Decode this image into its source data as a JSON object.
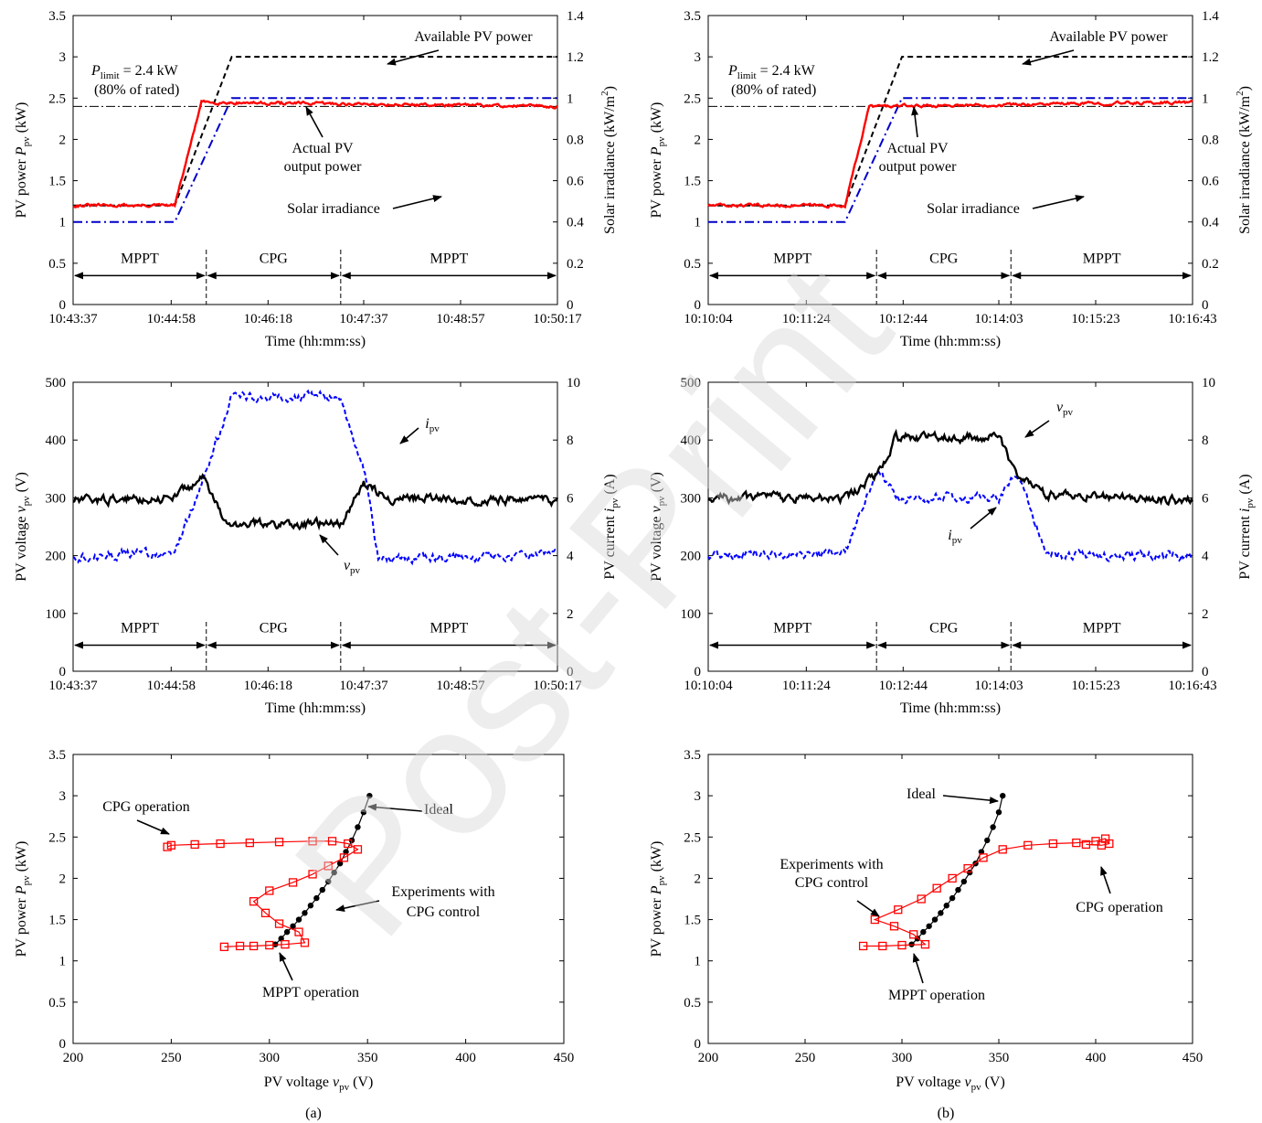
{
  "captions": [
    "(a)",
    "(b)"
  ],
  "watermark": "Post-Print",
  "chart_data": [
    {
      "id": "a-power",
      "type": "line",
      "xlabel": "Time (hh:mm:ss)",
      "ylabel": "PV power",
      "ylabel_var": "P",
      "ylabel_sub": "pv",
      "ylabel_unit": " (kW)",
      "y2label": "Solar irradiance (kW/m",
      "y2label_sup": "2",
      "y2label_end": ")",
      "xlim": [
        0,
        400
      ],
      "xticks": [
        0,
        81,
        161,
        240,
        320,
        400
      ],
      "xticklabels": [
        "10:43:37",
        "10:44:58",
        "10:46:18",
        "10:47:37",
        "10:48:57",
        "10:50:17"
      ],
      "ylim": [
        0,
        3.5
      ],
      "yticks": [
        0,
        0.5,
        1,
        1.5,
        2,
        2.5,
        3,
        3.5
      ],
      "yticklabels": [
        "0",
        "0.5",
        "1",
        "1.5",
        "2",
        "2.5",
        "3",
        "3.5"
      ],
      "y2lim": [
        0,
        1.4
      ],
      "y2ticks": [
        0,
        0.2,
        0.4,
        0.6,
        0.8,
        1,
        1.2,
        1.4
      ],
      "y2ticklabels": [
        "0",
        "0.2",
        "0.4",
        "0.6",
        "0.8",
        "1",
        "1.2",
        "1.4"
      ],
      "grid": false,
      "limit_line": 2.4,
      "series": [
        {
          "name": "Available PV power",
          "color": "#000000",
          "dash": "6,4",
          "x": [
            0,
            84,
            131,
            400
          ],
          "y": [
            1.2,
            1.2,
            3.0,
            3.0
          ]
        },
        {
          "name": "Solar irradiance",
          "axis": "right",
          "color": "#0000cc",
          "dash": "10,4,2,4",
          "x": [
            0,
            84,
            131,
            400
          ],
          "y": [
            0.4,
            0.4,
            1.0,
            1.0
          ]
        },
        {
          "name": "Actual PV output power",
          "color": "#ff0000",
          "dash": "",
          "x": [
            0,
            84,
            106,
            400
          ],
          "y": [
            1.2,
            1.2,
            2.45,
            2.4
          ]
        }
      ],
      "phases": [
        {
          "label": "MPPT",
          "from": 0,
          "to": 110
        },
        {
          "label": "CPG",
          "from": 110,
          "to": 221
        },
        {
          "label": "MPPT",
          "from": 221,
          "to": 400
        }
      ],
      "phase_y": 0.35,
      "annotations": [
        {
          "text": "Available PV power"
        },
        {
          "text": "Actual PV"
        },
        {
          "text": "output power"
        },
        {
          "text": "Solar irradiance"
        },
        {
          "text": "= 2.4 kW",
          "var": "P",
          "sub": "limit"
        },
        {
          "text": "(80% of rated)"
        }
      ]
    },
    {
      "id": "b-power",
      "type": "line",
      "xlabel": "Time (hh:mm:ss)",
      "ylabel": "PV power",
      "ylabel_var": "P",
      "ylabel_sub": "pv",
      "ylabel_unit": " (kW)",
      "y2label": "Solar irradiance (kW/m",
      "y2label_sup": "2",
      "y2label_end": ")",
      "xlim": [
        0,
        400
      ],
      "xticks": [
        0,
        81,
        161,
        240,
        320,
        400
      ],
      "xticklabels": [
        "10:10:04",
        "10:11:24",
        "10:12:44",
        "10:14:03",
        "10:15:23",
        "10:16:43"
      ],
      "ylim": [
        0,
        3.5
      ],
      "yticks": [
        0,
        0.5,
        1,
        1.5,
        2,
        2.5,
        3,
        3.5
      ],
      "yticklabels": [
        "0",
        "0.5",
        "1",
        "1.5",
        "2",
        "2.5",
        "3",
        "3.5"
      ],
      "y2lim": [
        0,
        1.4
      ],
      "y2ticks": [
        0,
        0.2,
        0.4,
        0.6,
        0.8,
        1,
        1.2,
        1.4
      ],
      "y2ticklabels": [
        "0",
        "0.2",
        "0.4",
        "0.6",
        "0.8",
        "1",
        "1.2",
        "1.4"
      ],
      "grid": false,
      "limit_line": 2.4,
      "series": [
        {
          "name": "Available PV power",
          "color": "#000000",
          "dash": "6,4",
          "x": [
            0,
            113,
            160,
            400
          ],
          "y": [
            1.2,
            1.2,
            3.0,
            3.0
          ]
        },
        {
          "name": "Solar irradiance",
          "axis": "right",
          "color": "#0000cc",
          "dash": "10,4,2,4",
          "x": [
            0,
            113,
            160,
            400
          ],
          "y": [
            0.4,
            0.4,
            1.0,
            1.0
          ]
        },
        {
          "name": "Actual PV output power",
          "color": "#ff0000",
          "dash": "",
          "x": [
            0,
            113,
            133,
            400
          ],
          "y": [
            1.2,
            1.2,
            2.4,
            2.45
          ]
        }
      ],
      "phases": [
        {
          "label": "MPPT",
          "from": 0,
          "to": 139
        },
        {
          "label": "CPG",
          "from": 139,
          "to": 250
        },
        {
          "label": "MPPT",
          "from": 250,
          "to": 400
        }
      ],
      "phase_y": 0.35,
      "annotations": [
        {
          "text": "Available PV power"
        },
        {
          "text": "Actual PV"
        },
        {
          "text": "output power"
        },
        {
          "text": "Solar irradiance"
        },
        {
          "text": "= 2.4 kW",
          "var": "P",
          "sub": "limit"
        },
        {
          "text": "(80% of rated)"
        }
      ]
    },
    {
      "id": "a-vi",
      "type": "line",
      "xlabel": "Time (hh:mm:ss)",
      "ylabel": "PV voltage",
      "ylabel_var": "v",
      "ylabel_sub": "pv",
      "ylabel_unit": " (V)",
      "y2label": "PV current",
      "y2label_var": "i",
      "y2label_sub": "pv",
      "y2label_end": " (A)",
      "xlim": [
        0,
        400
      ],
      "xticks": [
        0,
        81,
        161,
        240,
        320,
        400
      ],
      "xticklabels": [
        "10:43:37",
        "10:44:58",
        "10:46:18",
        "10:47:37",
        "10:48:57",
        "10:50:17"
      ],
      "ylim": [
        0,
        500
      ],
      "yticks": [
        0,
        100,
        200,
        300,
        400,
        500
      ],
      "yticklabels": [
        "0",
        "100",
        "200",
        "300",
        "400",
        "500"
      ],
      "y2lim": [
        0,
        10
      ],
      "y2ticks": [
        0,
        2,
        4,
        6,
        8,
        10
      ],
      "y2ticklabels": [
        "0",
        "2",
        "4",
        "6",
        "8",
        "10"
      ],
      "grid": false,
      "series": [
        {
          "name": "i_pv",
          "axis": "right",
          "color": "#0000ff",
          "dash": "5,3",
          "x": [
            0,
            84,
            109,
            131,
            221,
            243,
            252,
            400
          ],
          "y": [
            4.0,
            4.1,
            6.8,
            9.5,
            9.5,
            6.5,
            3.9,
            4.0
          ]
        },
        {
          "name": "v_pv",
          "color": "#000000",
          "dash": "",
          "x": [
            0,
            80,
            109,
            125,
            221,
            240,
            260,
            400
          ],
          "y": [
            295,
            300,
            335,
            255,
            255,
            325,
            300,
            295
          ]
        }
      ],
      "phases": [
        {
          "label": "MPPT",
          "from": 0,
          "to": 110
        },
        {
          "label": "CPG",
          "from": 110,
          "to": 221
        },
        {
          "label": "MPPT",
          "from": 221,
          "to": 400
        }
      ],
      "phase_y": 45,
      "annotations": [
        {
          "text": "",
          "var": "i",
          "sub": "pv"
        },
        {
          "text": "",
          "var": "v",
          "sub": "pv"
        }
      ]
    },
    {
      "id": "b-vi",
      "type": "line",
      "xlabel": "Time (hh:mm:ss)",
      "ylabel": "PV voltage",
      "ylabel_var": "v",
      "ylabel_sub": "pv",
      "ylabel_unit": " (V)",
      "y2label": "PV current",
      "y2label_var": "i",
      "y2label_sub": "pv",
      "y2label_end": " (A)",
      "xlim": [
        0,
        400
      ],
      "xticks": [
        0,
        81,
        161,
        240,
        320,
        400
      ],
      "xticklabels": [
        "10:10:04",
        "10:11:24",
        "10:12:44",
        "10:14:03",
        "10:15:23",
        "10:16:43"
      ],
      "ylim": [
        0,
        500
      ],
      "yticks": [
        0,
        100,
        200,
        300,
        400,
        500
      ],
      "yticklabels": [
        "0",
        "100",
        "200",
        "300",
        "400",
        "500"
      ],
      "y2lim": [
        0,
        10
      ],
      "y2ticks": [
        0,
        2,
        4,
        6,
        8,
        10
      ],
      "y2ticklabels": [
        "0",
        "2",
        "4",
        "6",
        "8",
        "10"
      ],
      "grid": false,
      "series": [
        {
          "name": "i_pv",
          "axis": "right",
          "color": "#0000ff",
          "dash": "5,3",
          "x": [
            0,
            113,
            140,
            155,
            240,
            255,
            281,
            400
          ],
          "y": [
            4.0,
            4.1,
            7.0,
            6.0,
            6.0,
            6.8,
            4.0,
            4.0
          ]
        },
        {
          "name": "v_pv",
          "color": "#000000",
          "dash": "",
          "x": [
            0,
            113,
            140,
            155,
            240,
            255,
            281,
            400
          ],
          "y": [
            300,
            300,
            340,
            405,
            405,
            340,
            305,
            295
          ]
        }
      ],
      "phases": [
        {
          "label": "MPPT",
          "from": 0,
          "to": 139
        },
        {
          "label": "CPG",
          "from": 139,
          "to": 250
        },
        {
          "label": "MPPT",
          "from": 250,
          "to": 400
        }
      ],
      "phase_y": 45,
      "annotations": [
        {
          "text": "",
          "var": "v",
          "sub": "pv"
        },
        {
          "text": "",
          "var": "i",
          "sub": "pv"
        }
      ]
    },
    {
      "id": "a-pv",
      "type": "scatter",
      "xlabel": "PV voltage",
      "xlabel_var": "v",
      "xlabel_sub": "pv",
      "xlabel_unit": " (V)",
      "ylabel": "PV power",
      "ylabel_var": "P",
      "ylabel_sub": "pv",
      "ylabel_unit": " (kW)",
      "xlim": [
        200,
        450
      ],
      "xticks": [
        200,
        250,
        300,
        350,
        400,
        450
      ],
      "xticklabels": [
        "200",
        "250",
        "300",
        "350",
        "400",
        "450"
      ],
      "ylim": [
        0,
        3.5
      ],
      "yticks": [
        0,
        0.5,
        1,
        1.5,
        2,
        2.5,
        3,
        3.5
      ],
      "yticklabels": [
        "0",
        "0.5",
        "1",
        "1.5",
        "2",
        "2.5",
        "3",
        "3.5"
      ],
      "grid": false,
      "series": [
        {
          "name": "Ideal",
          "color": "#000000",
          "marker": "circle",
          "x": [
            303,
            306,
            309,
            312,
            315,
            318,
            321,
            324,
            327,
            330,
            333,
            336,
            339,
            342,
            345,
            348,
            351
          ],
          "y": [
            1.2,
            1.27,
            1.35,
            1.42,
            1.5,
            1.58,
            1.67,
            1.76,
            1.86,
            1.96,
            2.07,
            2.18,
            2.32,
            2.46,
            2.62,
            2.8,
            3.0
          ]
        },
        {
          "name": "Experiments with CPG control",
          "color": "#ff0000",
          "marker": "square",
          "x": [
            277,
            285,
            292,
            300,
            308,
            318,
            315,
            305,
            298,
            292,
            300,
            312,
            322,
            330,
            338,
            345,
            340,
            332,
            322,
            305,
            290,
            275,
            262,
            250,
            248
          ],
          "y": [
            1.17,
            1.18,
            1.18,
            1.19,
            1.2,
            1.22,
            1.35,
            1.45,
            1.58,
            1.72,
            1.85,
            1.95,
            2.05,
            2.15,
            2.25,
            2.35,
            2.42,
            2.45,
            2.45,
            2.44,
            2.43,
            2.42,
            2.41,
            2.4,
            2.38
          ]
        }
      ],
      "annotations": [
        {
          "text": "CPG operation"
        },
        {
          "text": "Ideal"
        },
        {
          "text": "Experiments with"
        },
        {
          "text": "CPG control"
        },
        {
          "text": "MPPT operation"
        }
      ]
    },
    {
      "id": "b-pv",
      "type": "scatter",
      "xlabel": "PV voltage",
      "xlabel_var": "v",
      "xlabel_sub": "pv",
      "xlabel_unit": " (V)",
      "ylabel": "PV power",
      "ylabel_var": "P",
      "ylabel_sub": "pv",
      "ylabel_unit": " (kW)",
      "xlim": [
        200,
        450
      ],
      "xticks": [
        200,
        250,
        300,
        350,
        400,
        450
      ],
      "xticklabels": [
        "200",
        "250",
        "300",
        "350",
        "400",
        "450"
      ],
      "ylim": [
        0,
        3.5
      ],
      "yticks": [
        0,
        0.5,
        1,
        1.5,
        2,
        2.5,
        3,
        3.5
      ],
      "yticklabels": [
        "0",
        "0.5",
        "1",
        "1.5",
        "2",
        "2.5",
        "3",
        "3.5"
      ],
      "grid": false,
      "series": [
        {
          "name": "Ideal",
          "color": "#000000",
          "marker": "circle",
          "x": [
            305,
            308,
            311,
            314,
            317,
            320,
            323,
            326,
            329,
            332,
            335,
            338,
            341,
            344,
            347,
            350,
            352
          ],
          "y": [
            1.2,
            1.27,
            1.35,
            1.42,
            1.5,
            1.58,
            1.67,
            1.76,
            1.86,
            1.96,
            2.07,
            2.18,
            2.32,
            2.46,
            2.62,
            2.8,
            3.0
          ]
        },
        {
          "name": "Experiments with CPG control",
          "color": "#ff0000",
          "marker": "square",
          "x": [
            280,
            290,
            300,
            312,
            306,
            296,
            286,
            298,
            310,
            318,
            326,
            334,
            342,
            352,
            365,
            378,
            390,
            400,
            405,
            407,
            403,
            395
          ],
          "y": [
            1.18,
            1.18,
            1.19,
            1.2,
            1.32,
            1.42,
            1.5,
            1.62,
            1.75,
            1.88,
            2.0,
            2.12,
            2.25,
            2.35,
            2.4,
            2.42,
            2.43,
            2.45,
            2.48,
            2.42,
            2.4,
            2.41
          ]
        }
      ],
      "annotations": [
        {
          "text": "Ideal"
        },
        {
          "text": "Experiments with"
        },
        {
          "text": "CPG control"
        },
        {
          "text": "CPG operation"
        },
        {
          "text": "MPPT operation"
        }
      ]
    }
  ]
}
